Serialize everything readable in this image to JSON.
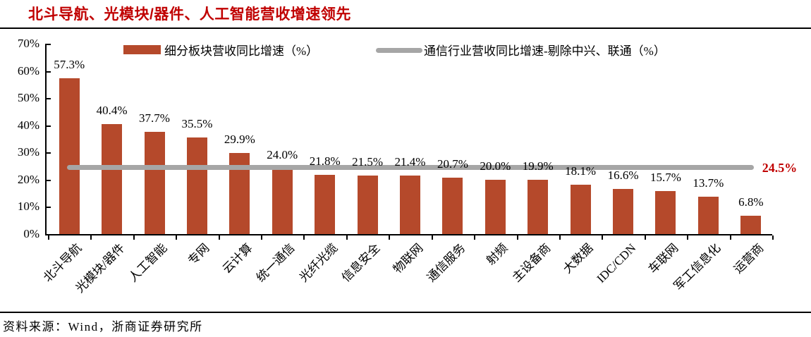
{
  "source": "资料来源：Wind，浙商证券研究所",
  "line_annotation": "24.5%",
  "colors": {
    "bar": "#B5492B",
    "line": "#A6A6A6",
    "accent": "#C00000",
    "axis": "#000000"
  },
  "chart_data": {
    "type": "bar",
    "title": "北斗导航、光模块/器件、人工智能营收增速领先",
    "categories": [
      "北斗导航",
      "光模块/器件",
      "人工智能",
      "专网",
      "云计算",
      "统一通信",
      "光纤光缆",
      "信息安全",
      "物联网",
      "通信服务",
      "射频",
      "主设备商",
      "大数据",
      "IDC/CDN",
      "车联网",
      "军工信息化",
      "运营商"
    ],
    "series": [
      {
        "name": "细分板块营收同比增速（%）",
        "type": "bar",
        "values": [
          57.3,
          40.4,
          37.7,
          35.5,
          29.9,
          24.0,
          21.8,
          21.5,
          21.4,
          20.7,
          20.0,
          19.9,
          18.1,
          16.6,
          15.7,
          13.7,
          6.8
        ]
      },
      {
        "name": "通信行业营收同比增速-剔除中兴、联通（%）",
        "type": "line",
        "constant_value": 24.5
      }
    ],
    "value_label_suffix": "%",
    "ylim": [
      0,
      70
    ],
    "yticks": [
      0,
      10,
      20,
      30,
      40,
      50,
      60,
      70
    ],
    "ytick_suffix": "%",
    "grid": false,
    "legend_position": "top",
    "value_labels_visible": true
  }
}
